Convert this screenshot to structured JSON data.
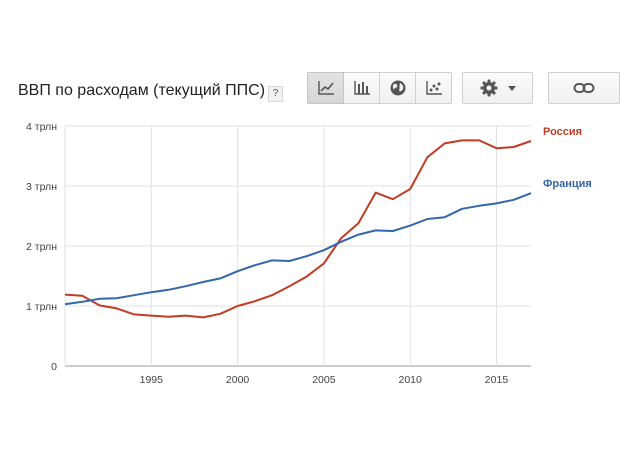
{
  "header": {
    "title": "ВВП по расходам (текущий ППС)",
    "help_label": "?"
  },
  "toolbar": {
    "buttons": [
      {
        "icon": "line-chart-icon",
        "active": true
      },
      {
        "icon": "bar-chart-icon",
        "active": false
      },
      {
        "icon": "globe-icon",
        "active": false
      },
      {
        "icon": "scatter-chart-icon",
        "active": false
      }
    ],
    "settings_icon": "gear-icon",
    "dropdown_icon": "caret-down-icon",
    "link_icon": "link-icon"
  },
  "colors": {
    "russia": "#c23b22",
    "france": "#3366aa",
    "grid": "#e2e2e2",
    "axis": "#9a9a9a"
  },
  "chart_data": {
    "type": "line",
    "xlim": [
      1990,
      2017
    ],
    "ylim": [
      0,
      4
    ],
    "x_ticks": [
      1995,
      2000,
      2005,
      2010,
      2015
    ],
    "y_ticks": [
      {
        "value": 0,
        "label": "0"
      },
      {
        "value": 1,
        "label": "1 трлн"
      },
      {
        "value": 2,
        "label": "2 трлн"
      },
      {
        "value": 3,
        "label": "3 трлн"
      },
      {
        "value": 4,
        "label": "4 трлн"
      }
    ],
    "grid": true,
    "legend": "right-inline",
    "series": [
      {
        "name": "Россия",
        "color": "#c23b22",
        "x": [
          1990,
          1991,
          1992,
          1993,
          1994,
          1995,
          1996,
          1997,
          1998,
          1999,
          2000,
          2001,
          2002,
          2003,
          2004,
          2005,
          2006,
          2007,
          2008,
          2009,
          2010,
          2011,
          2012,
          2013,
          2014,
          2015,
          2016,
          2017
        ],
        "values": [
          1.19,
          1.17,
          1.01,
          0.96,
          0.86,
          0.84,
          0.82,
          0.84,
          0.81,
          0.87,
          1.0,
          1.08,
          1.18,
          1.33,
          1.49,
          1.71,
          2.13,
          2.38,
          2.89,
          2.78,
          2.95,
          3.48,
          3.71,
          3.76,
          3.76,
          3.63,
          3.65,
          3.75
        ]
      },
      {
        "name": "Франция",
        "color": "#3366aa",
        "x": [
          1990,
          1991,
          1992,
          1993,
          1994,
          1995,
          1996,
          1997,
          1998,
          1999,
          2000,
          2001,
          2002,
          2003,
          2004,
          2005,
          2006,
          2007,
          2008,
          2009,
          2010,
          2011,
          2012,
          2013,
          2014,
          2015,
          2016,
          2017
        ],
        "values": [
          1.03,
          1.07,
          1.12,
          1.13,
          1.18,
          1.23,
          1.27,
          1.33,
          1.4,
          1.46,
          1.58,
          1.68,
          1.76,
          1.75,
          1.83,
          1.93,
          2.07,
          2.19,
          2.26,
          2.25,
          2.34,
          2.45,
          2.48,
          2.62,
          2.67,
          2.71,
          2.77,
          2.88
        ]
      }
    ]
  }
}
